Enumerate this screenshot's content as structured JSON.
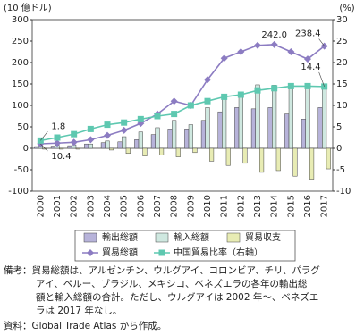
{
  "chart_data": {
    "type": "bar",
    "y_label": "(10 億ドル)",
    "y2_label": "(%)",
    "categories": [
      "2000",
      "2001",
      "2002",
      "2003",
      "2004",
      "2005",
      "2006",
      "2007",
      "2008",
      "2009",
      "2010",
      "2011",
      "2012",
      "2013",
      "2014",
      "2015",
      "2016",
      "2017"
    ],
    "series": [
      {
        "name": "輸出総額",
        "type": "bar",
        "color": "#b7b3da",
        "values": [
          4,
          5,
          6,
          10,
          13,
          15,
          20,
          32,
          45,
          45,
          65,
          85,
          95,
          92,
          95,
          80,
          68,
          95
        ]
      },
      {
        "name": "輸入総額",
        "type": "bar",
        "color": "#cfe8e0",
        "values": [
          6,
          7,
          8,
          10,
          17,
          27,
          38,
          48,
          65,
          55,
          95,
          125,
          130,
          148,
          147,
          145,
          140,
          143
        ]
      },
      {
        "name": "貿易収支",
        "type": "bar",
        "color": "#e8ecb4",
        "values": [
          -2,
          -2,
          -2,
          0,
          -4,
          -12,
          -18,
          -16,
          -20,
          -10,
          -30,
          -40,
          -35,
          -56,
          -52,
          -65,
          -72,
          -48
        ]
      },
      {
        "name": "貿易総額",
        "type": "line",
        "color": "#8c7cc2",
        "marker": "diamond",
        "values": [
          10.4,
          12,
          14,
          20,
          30,
          42,
          58,
          80,
          110,
          100,
          160,
          210,
          225,
          240,
          242.0,
          225,
          208,
          238.4
        ],
        "value_labels": [
          "10.4",
          null,
          null,
          null,
          null,
          null,
          null,
          null,
          null,
          null,
          null,
          null,
          null,
          null,
          "242.0",
          null,
          null,
          "238.4"
        ]
      },
      {
        "name": "中国貿易比率（右軸）",
        "type": "line",
        "axis": "y2",
        "color": "#5ec8b0",
        "marker": "square",
        "values": [
          1.8,
          2.5,
          3.3,
          4.5,
          5.5,
          6.0,
          6.8,
          7.5,
          8.0,
          10.0,
          11.0,
          12.0,
          12.5,
          13.5,
          14.0,
          14.5,
          14.5,
          14.4
        ],
        "value_labels": [
          "1.8",
          null,
          null,
          null,
          null,
          null,
          null,
          null,
          null,
          null,
          null,
          null,
          null,
          null,
          null,
          null,
          null,
          "14.4"
        ]
      }
    ],
    "ylim": [
      -100,
      300
    ],
    "yticks": [
      -100,
      -50,
      0,
      50,
      100,
      150,
      200,
      250,
      300
    ],
    "y2lim": [
      -10,
      30
    ],
    "y2ticks": [
      -10,
      -5,
      0,
      5,
      10,
      15,
      20,
      25,
      30
    ],
    "grid": false
  },
  "notes": [
    "備考：貿易総額は、アルゼンチン、ウルグアイ、コロンビア、チリ、パラグ",
    "アイ、ペルー、ブラジル、メキシコ、ベネズエラの各年の輸出総",
    "額と輸入総額の合計。ただし、ウルグアイは 2002 年～、ベネズエ",
    "ラは 2017 年なし。"
  ],
  "source": "資料：Global Trade Atlas から作成。"
}
